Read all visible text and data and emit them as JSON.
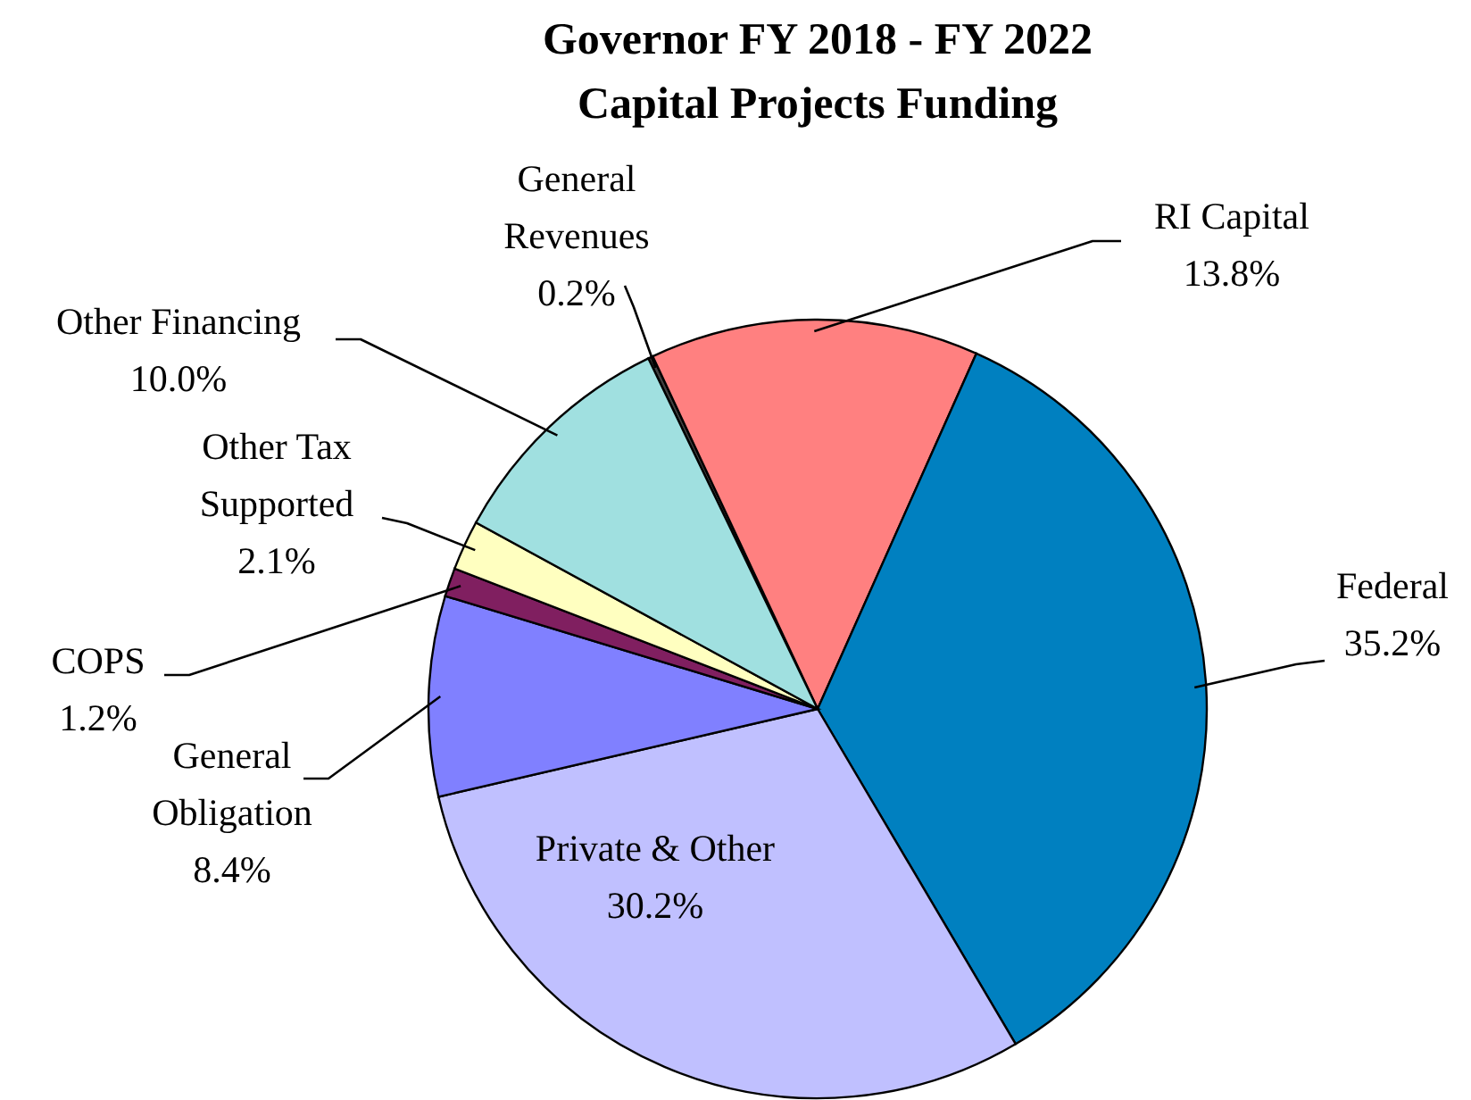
{
  "chart_data": {
    "type": "pie",
    "title": "Governor FY 2018 - FY 2022",
    "subtitle": "Capital Projects Funding",
    "categories": [
      "General Revenues",
      "RI Capital",
      "Federal",
      "Private & Other",
      "General Obligation",
      "COPS",
      "Other Tax Supported",
      "Other Financing"
    ],
    "values": [
      0.2,
      13.8,
      35.2,
      30.2,
      8.4,
      1.2,
      2.1,
      10.0
    ],
    "value_labels": [
      "0.2%",
      "13.8%",
      "35.2%",
      "30.2%",
      "8.4%",
      "1.2%",
      "2.1%",
      "10.0%"
    ],
    "colors": [
      "#404040",
      "#ff8080",
      "#0080c0",
      "#c0c0ff",
      "#8080ff",
      "#801f60",
      "#ffffc0",
      "#a0e0e0"
    ]
  }
}
